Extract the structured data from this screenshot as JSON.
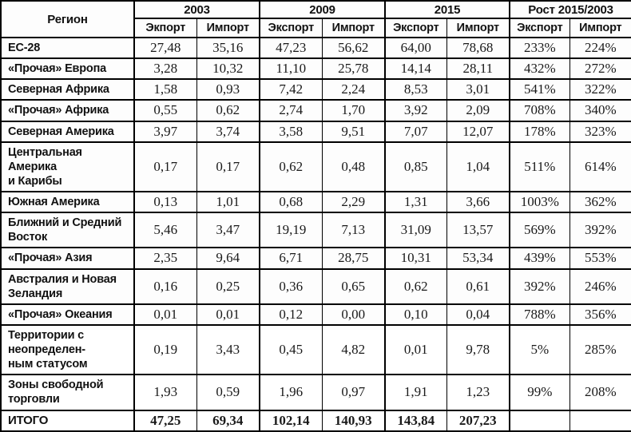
{
  "colors": {
    "background": "#ffffff",
    "text": "#1a1a1a",
    "border": "#000000"
  },
  "table": {
    "header": {
      "region": "Регион",
      "groups": [
        {
          "label": "2003",
          "sub": [
            "Экпорт",
            "Импорт"
          ]
        },
        {
          "label": "2009",
          "sub": [
            "Экспорт",
            "Импорт"
          ]
        },
        {
          "label": "2015",
          "sub": [
            "Экспорт",
            "Импорт"
          ]
        },
        {
          "label": "Рост 2015/2003",
          "sub": [
            "Экспорт",
            "Импорт"
          ]
        }
      ]
    },
    "rows": [
      {
        "region": "ЕС-28",
        "values": [
          "27,48",
          "35,16",
          "47,23",
          "56,62",
          "64,00",
          "78,68",
          "233%",
          "224%"
        ],
        "is_total": false
      },
      {
        "region": "«Прочая» Европа",
        "values": [
          "3,28",
          "10,32",
          "11,10",
          "25,78",
          "14,14",
          "28,11",
          "432%",
          "272%"
        ],
        "is_total": false
      },
      {
        "region": "Северная Африка",
        "values": [
          "1,58",
          "0,93",
          "7,42",
          "2,24",
          "8,53",
          "3,01",
          "541%",
          "322%"
        ],
        "is_total": false
      },
      {
        "region": "«Прочая» Африка",
        "values": [
          "0,55",
          "0,62",
          "2,74",
          "1,70",
          "3,92",
          "2,09",
          "708%",
          "340%"
        ],
        "is_total": false
      },
      {
        "region": "Северная Америка",
        "values": [
          "3,97",
          "3,74",
          "3,58",
          "9,51",
          "7,07",
          "12,07",
          "178%",
          "323%"
        ],
        "is_total": false
      },
      {
        "region": "Центральная Америка\nи Карибы",
        "values": [
          "0,17",
          "0,17",
          "0,62",
          "0,48",
          "0,85",
          "1,04",
          "511%",
          "614%"
        ],
        "is_total": false
      },
      {
        "region": "Южная Америка",
        "values": [
          "0,13",
          "1,01",
          "0,68",
          "2,29",
          "1,31",
          "3,66",
          "1003%",
          "362%"
        ],
        "is_total": false
      },
      {
        "region": "Ближний и Средний Восток",
        "values": [
          "5,46",
          "3,47",
          "19,19",
          "7,13",
          "31,09",
          "13,57",
          "569%",
          "392%"
        ],
        "is_total": false
      },
      {
        "region": "«Прочая» Азия",
        "values": [
          "2,35",
          "9,64",
          "6,71",
          "28,75",
          "10,31",
          "53,34",
          "439%",
          "553%"
        ],
        "is_total": false
      },
      {
        "region": "Австралия и Новая Зеландия",
        "values": [
          "0,16",
          "0,25",
          "0,36",
          "0,65",
          "0,62",
          "0,61",
          "392%",
          "246%"
        ],
        "is_total": false
      },
      {
        "region": "«Прочая» Океания",
        "values": [
          "0,01",
          "0,01",
          "0,12",
          "0,00",
          "0,10",
          "0,04",
          "788%",
          "356%"
        ],
        "is_total": false
      },
      {
        "region": "Территории с неопределен-\nным статусом",
        "values": [
          "0,19",
          "3,43",
          "0,45",
          "4,82",
          "0,01",
          "9,78",
          "5%",
          "285%"
        ],
        "is_total": false
      },
      {
        "region": "Зоны свободной торговли",
        "values": [
          "1,93",
          "0,59",
          "1,96",
          "0,97",
          "1,91",
          "1,23",
          "99%",
          "208%"
        ],
        "is_total": false
      },
      {
        "region": "ИТОГО",
        "values": [
          "47,25",
          "69,34",
          "102,14",
          "140,93",
          "143,84",
          "207,23",
          "",
          ""
        ],
        "is_total": true
      }
    ]
  }
}
